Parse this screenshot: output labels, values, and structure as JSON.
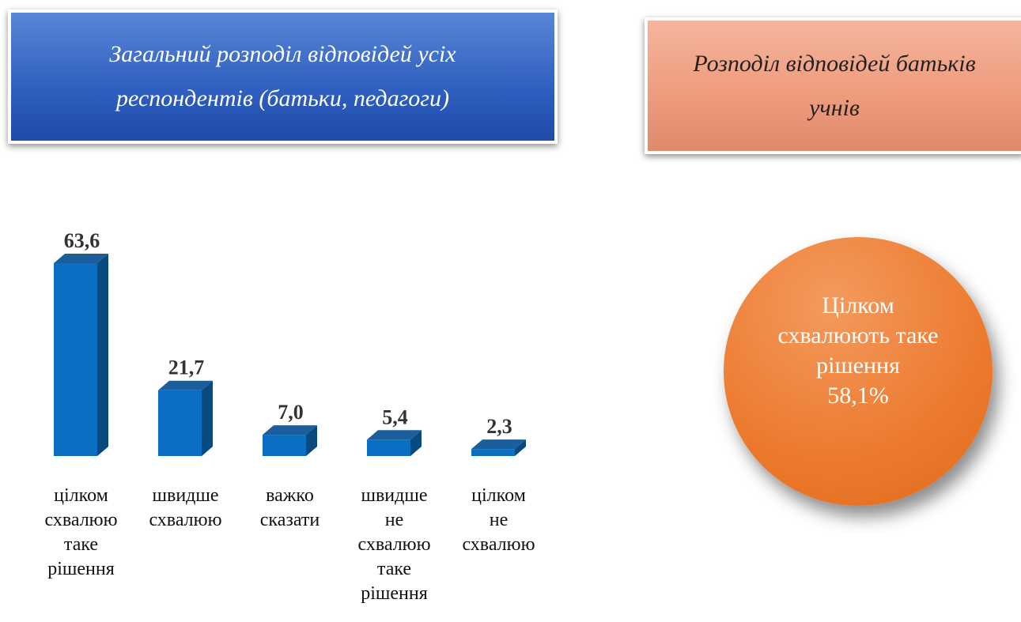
{
  "left_header": {
    "title": "Загальний розподіл відповідей усіх респондентів (батьки, педагоги)"
  },
  "right_header": {
    "title": "Розподіл відповідей батьків учнів"
  },
  "circle": {
    "text": "Цілком схвалюють таке рішення",
    "value": 58.1,
    "value_label": "58,1%"
  },
  "chart_data": {
    "type": "bar3d",
    "categories": [
      "цілком схвалюю таке рішення",
      "швидше схвалюю",
      "важко сказати",
      "швидше не схвалюю таке рішення",
      "цілком не схвалюю"
    ],
    "values": [
      63.6,
      21.7,
      7.0,
      5.4,
      2.3
    ],
    "value_labels": [
      "63,6",
      "21,7",
      "7,0",
      "5,4",
      "2,3"
    ],
    "color": "#0a6fc2"
  }
}
